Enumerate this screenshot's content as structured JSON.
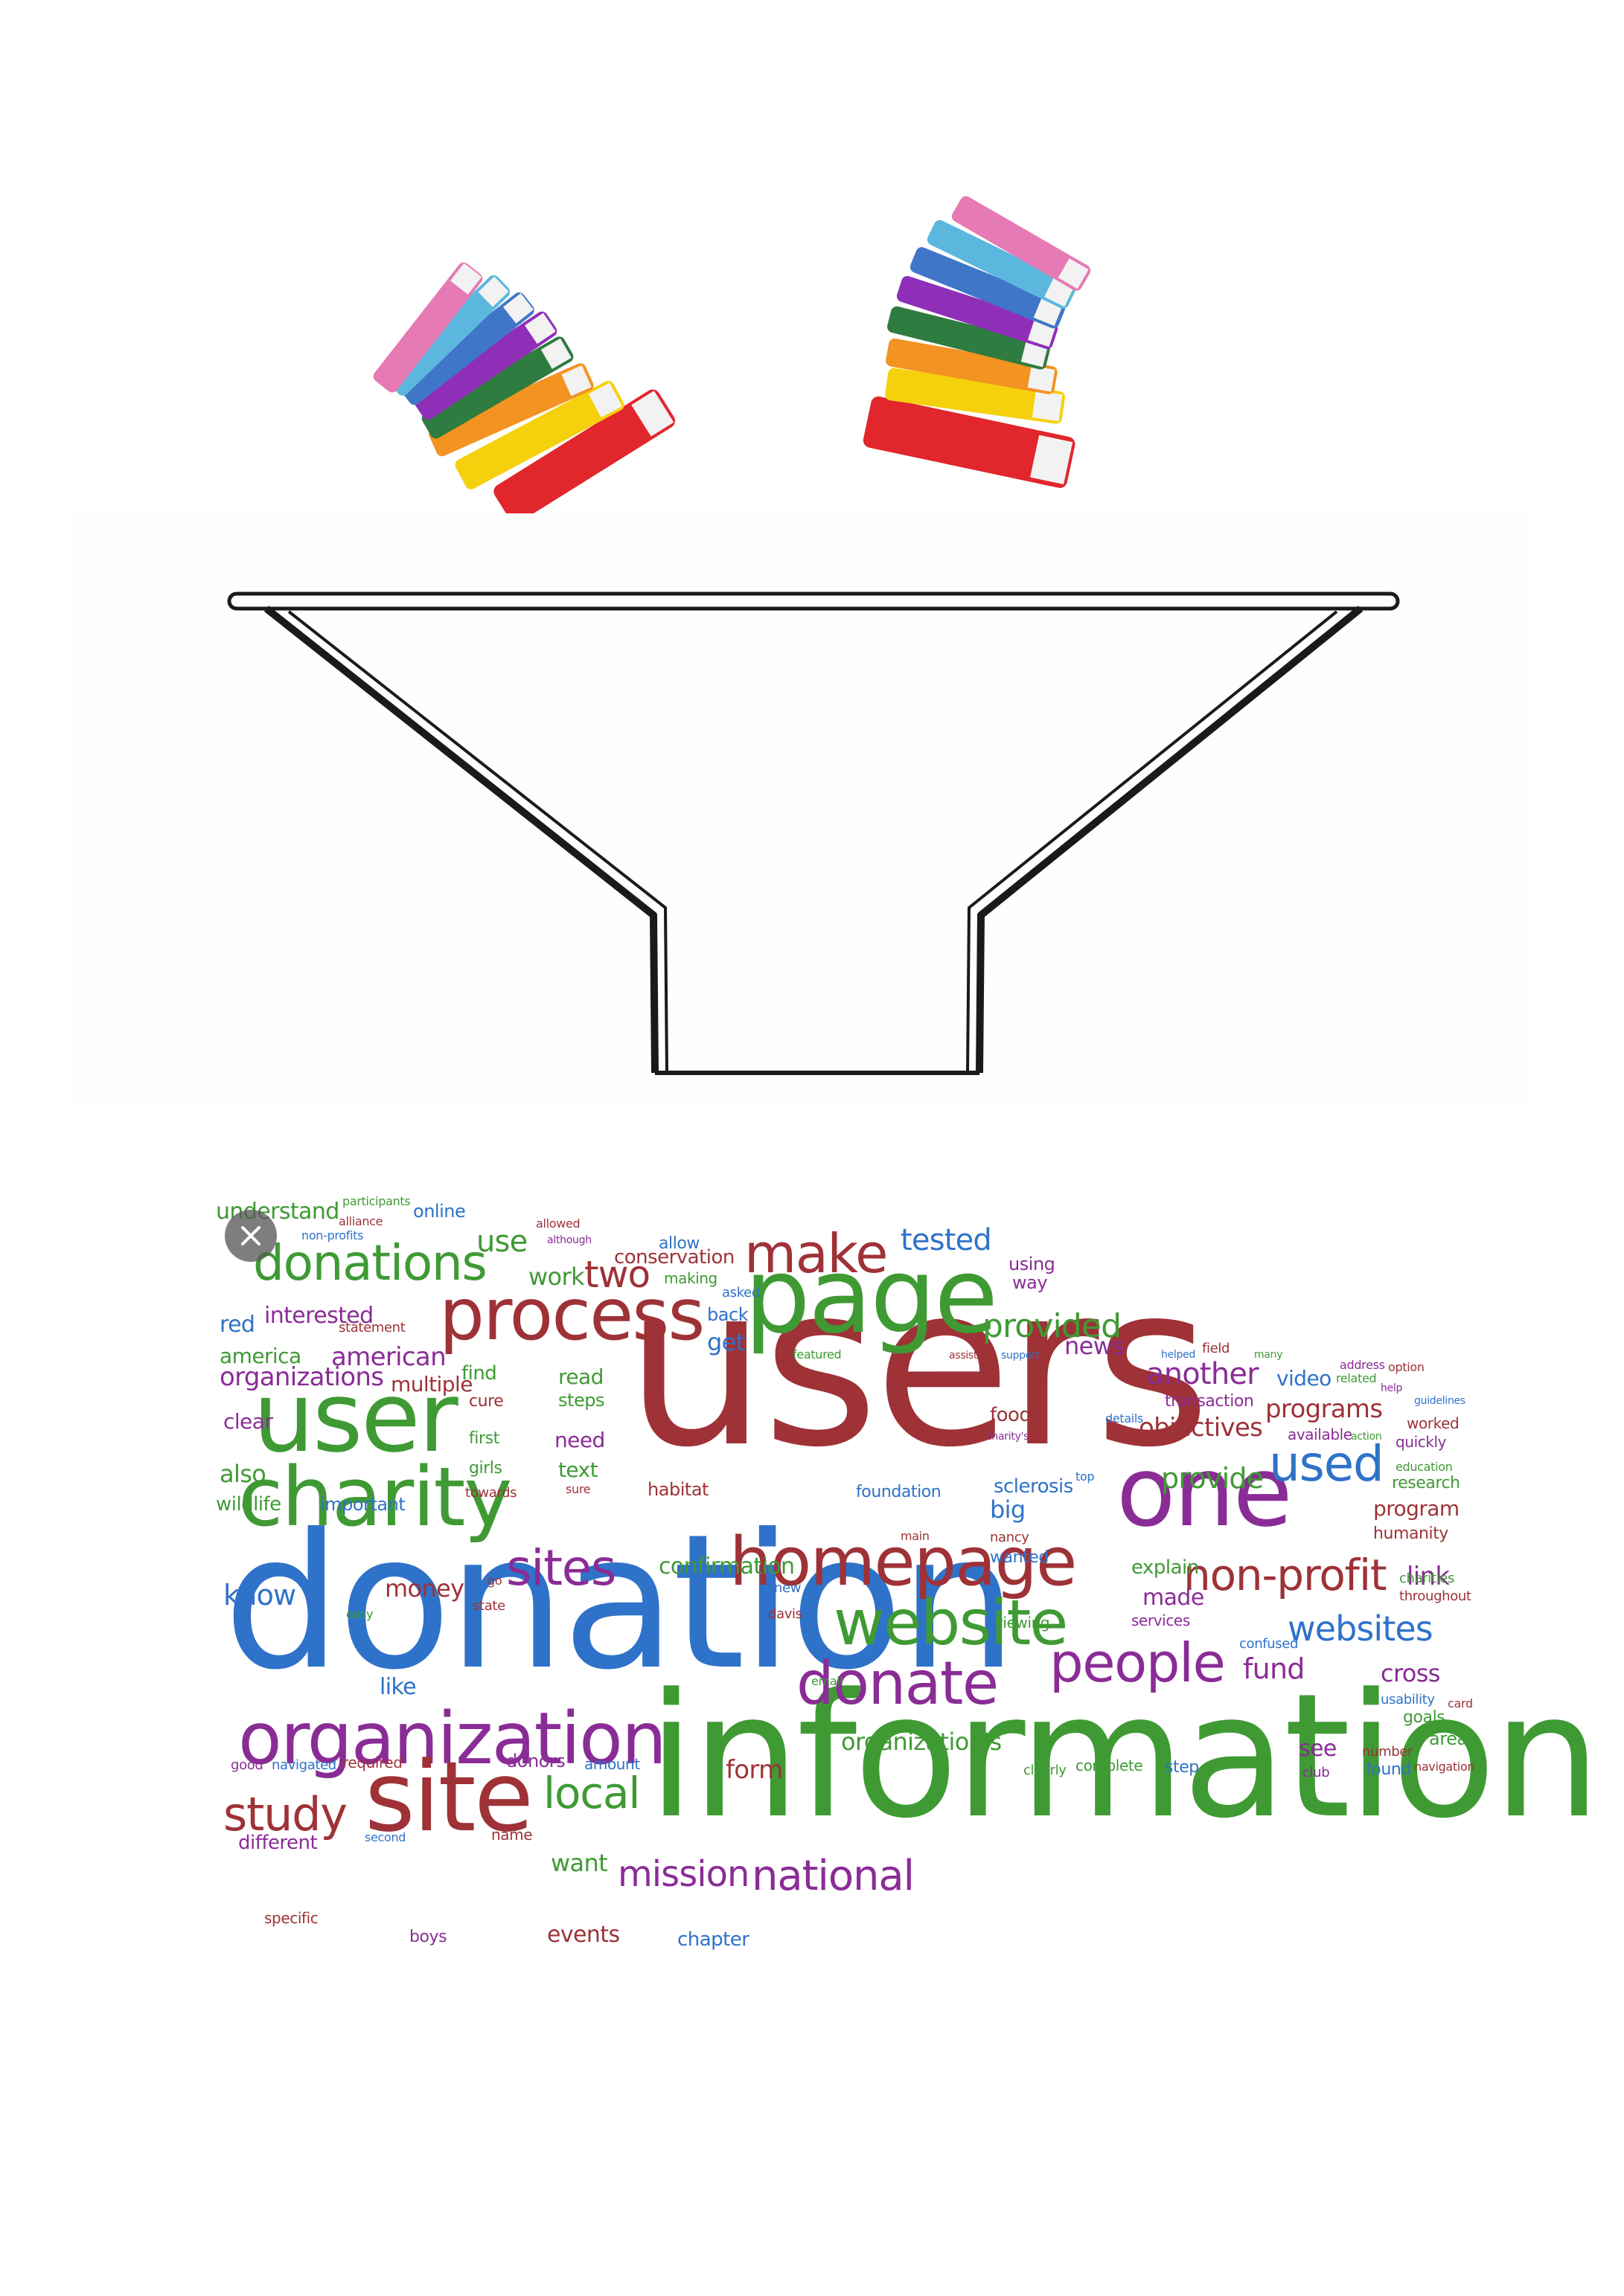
{
  "word_cloud": {
    "words": [
      {
        "text": "users",
        "color": "red"
      },
      {
        "text": "donation",
        "color": "blue"
      },
      {
        "text": "information",
        "color": "green"
      },
      {
        "text": "page",
        "color": "green"
      },
      {
        "text": "process",
        "color": "red"
      },
      {
        "text": "user",
        "color": "green"
      },
      {
        "text": "charity",
        "color": "green"
      },
      {
        "text": "organization",
        "color": "purple"
      },
      {
        "text": "site",
        "color": "red"
      },
      {
        "text": "homepage",
        "color": "red"
      },
      {
        "text": "one",
        "color": "purple"
      },
      {
        "text": "website",
        "color": "green"
      },
      {
        "text": "donate",
        "color": "purple"
      },
      {
        "text": "people",
        "color": "purple"
      },
      {
        "text": "make",
        "color": "red"
      },
      {
        "text": "donations",
        "color": "green"
      },
      {
        "text": "sites",
        "color": "purple"
      },
      {
        "text": "study",
        "color": "red"
      },
      {
        "text": "national",
        "color": "purple"
      },
      {
        "text": "local",
        "color": "green"
      },
      {
        "text": "used",
        "color": "blue"
      },
      {
        "text": "non-profit",
        "color": "red"
      },
      {
        "text": "websites",
        "color": "blue"
      },
      {
        "text": "mission",
        "color": "purple"
      },
      {
        "text": "two",
        "color": "red"
      },
      {
        "text": "provided",
        "color": "green"
      },
      {
        "text": "tested",
        "color": "blue"
      },
      {
        "text": "another",
        "color": "purple"
      },
      {
        "text": "provide",
        "color": "green"
      },
      {
        "text": "programs",
        "color": "red"
      },
      {
        "text": "objectives",
        "color": "red"
      },
      {
        "text": "organization's",
        "color": "green"
      },
      {
        "text": "american",
        "color": "purple"
      },
      {
        "text": "organizations",
        "color": "purple"
      },
      {
        "text": "interested",
        "color": "purple"
      },
      {
        "text": "understand",
        "color": "green"
      },
      {
        "text": "online",
        "color": "blue"
      },
      {
        "text": "use",
        "color": "green"
      },
      {
        "text": "work",
        "color": "green"
      },
      {
        "text": "conservation",
        "color": "red"
      },
      {
        "text": "allow",
        "color": "blue"
      },
      {
        "text": "red",
        "color": "blue"
      },
      {
        "text": "america",
        "color": "green"
      },
      {
        "text": "multiple",
        "color": "red"
      },
      {
        "text": "find",
        "color": "green"
      },
      {
        "text": "read",
        "color": "green"
      },
      {
        "text": "steps",
        "color": "green"
      },
      {
        "text": "cure",
        "color": "red"
      },
      {
        "text": "clear",
        "color": "purple"
      },
      {
        "text": "also",
        "color": "green"
      },
      {
        "text": "wildlife",
        "color": "green"
      },
      {
        "text": "important",
        "color": "blue"
      },
      {
        "text": "first",
        "color": "green"
      },
      {
        "text": "girls",
        "color": "green"
      },
      {
        "text": "towards",
        "color": "red"
      },
      {
        "text": "need",
        "color": "purple"
      },
      {
        "text": "text",
        "color": "green"
      },
      {
        "text": "sure",
        "color": "red"
      },
      {
        "text": "habitat",
        "color": "red"
      },
      {
        "text": "foundation",
        "color": "blue"
      },
      {
        "text": "sclerosis",
        "color": "blue"
      },
      {
        "text": "big",
        "color": "blue"
      },
      {
        "text": "nancy",
        "color": "red"
      },
      {
        "text": "wanted",
        "color": "blue"
      },
      {
        "text": "know",
        "color": "blue"
      },
      {
        "text": "money",
        "color": "red"
      },
      {
        "text": "confirmation",
        "color": "green"
      },
      {
        "text": "new",
        "color": "blue"
      },
      {
        "text": "davis",
        "color": "red"
      },
      {
        "text": "go",
        "color": "red"
      },
      {
        "text": "state",
        "color": "red"
      },
      {
        "text": "easy",
        "color": "green"
      },
      {
        "text": "like",
        "color": "blue"
      },
      {
        "text": "email",
        "color": "green"
      },
      {
        "text": "viewing",
        "color": "green"
      },
      {
        "text": "explain",
        "color": "green"
      },
      {
        "text": "made",
        "color": "purple"
      },
      {
        "text": "services",
        "color": "purple"
      },
      {
        "text": "link",
        "color": "purple"
      },
      {
        "text": "fund",
        "color": "purple"
      },
      {
        "text": "cross",
        "color": "purple"
      },
      {
        "text": "confused",
        "color": "blue"
      },
      {
        "text": "usability",
        "color": "blue"
      },
      {
        "text": "goals",
        "color": "green"
      },
      {
        "text": "area",
        "color": "green"
      },
      {
        "text": "see",
        "color": "purple"
      },
      {
        "text": "club",
        "color": "purple"
      },
      {
        "text": "number",
        "color": "red"
      },
      {
        "text": "found",
        "color": "blue"
      },
      {
        "text": "navigation",
        "color": "red"
      },
      {
        "text": "step",
        "color": "blue"
      },
      {
        "text": "complete",
        "color": "green"
      },
      {
        "text": "clearly",
        "color": "green"
      },
      {
        "text": "form",
        "color": "red"
      },
      {
        "text": "donors",
        "color": "purple"
      },
      {
        "text": "amount",
        "color": "blue"
      },
      {
        "text": "good",
        "color": "purple"
      },
      {
        "text": "navigated",
        "color": "blue"
      },
      {
        "text": "required",
        "color": "red"
      },
      {
        "text": "different",
        "color": "purple"
      },
      {
        "text": "second",
        "color": "blue"
      },
      {
        "text": "name",
        "color": "red"
      },
      {
        "text": "want",
        "color": "green"
      },
      {
        "text": "specific",
        "color": "red"
      },
      {
        "text": "boys",
        "color": "purple"
      },
      {
        "text": "events",
        "color": "red"
      },
      {
        "text": "chapter",
        "color": "blue"
      },
      {
        "text": "participants",
        "color": "green"
      },
      {
        "text": "alliance",
        "color": "red"
      },
      {
        "text": "non-profits",
        "color": "blue"
      },
      {
        "text": "statement",
        "color": "red"
      },
      {
        "text": "allowed",
        "color": "red"
      },
      {
        "text": "although",
        "color": "purple"
      },
      {
        "text": "making",
        "color": "green"
      },
      {
        "text": "asked",
        "color": "blue"
      },
      {
        "text": "back",
        "color": "blue"
      },
      {
        "text": "get",
        "color": "blue"
      },
      {
        "text": "featured",
        "color": "green"
      },
      {
        "text": "assistive",
        "color": "red"
      },
      {
        "text": "support",
        "color": "blue"
      },
      {
        "text": "news",
        "color": "purple"
      },
      {
        "text": "using",
        "color": "purple"
      },
      {
        "text": "way",
        "color": "purple"
      },
      {
        "text": "helped",
        "color": "blue"
      },
      {
        "text": "field",
        "color": "red"
      },
      {
        "text": "many",
        "color": "green"
      },
      {
        "text": "address",
        "color": "purple"
      },
      {
        "text": "option",
        "color": "red"
      },
      {
        "text": "related",
        "color": "green"
      },
      {
        "text": "help",
        "color": "purple"
      },
      {
        "text": "guidelines",
        "color": "blue"
      },
      {
        "text": "video",
        "color": "blue"
      },
      {
        "text": "transaction",
        "color": "purple"
      },
      {
        "text": "worked",
        "color": "red"
      },
      {
        "text": "food",
        "color": "red"
      },
      {
        "text": "charity's",
        "color": "purple"
      },
      {
        "text": "details",
        "color": "blue"
      },
      {
        "text": "available",
        "color": "purple"
      },
      {
        "text": "action",
        "color": "green"
      },
      {
        "text": "quickly",
        "color": "purple"
      },
      {
        "text": "top",
        "color": "blue"
      },
      {
        "text": "education",
        "color": "green"
      },
      {
        "text": "research",
        "color": "green"
      },
      {
        "text": "program",
        "color": "red"
      },
      {
        "text": "humanity",
        "color": "red"
      },
      {
        "text": "main",
        "color": "red"
      },
      {
        "text": "charities",
        "color": "green"
      },
      {
        "text": "throughout",
        "color": "red"
      },
      {
        "text": "card",
        "color": "red"
      }
    ]
  },
  "palette": {
    "red": "#9e3237",
    "green": "#3f9a34",
    "blue": "#2f72c9",
    "purple": "#8a2c96"
  },
  "overlay": {
    "close_icon": "close-icon"
  }
}
